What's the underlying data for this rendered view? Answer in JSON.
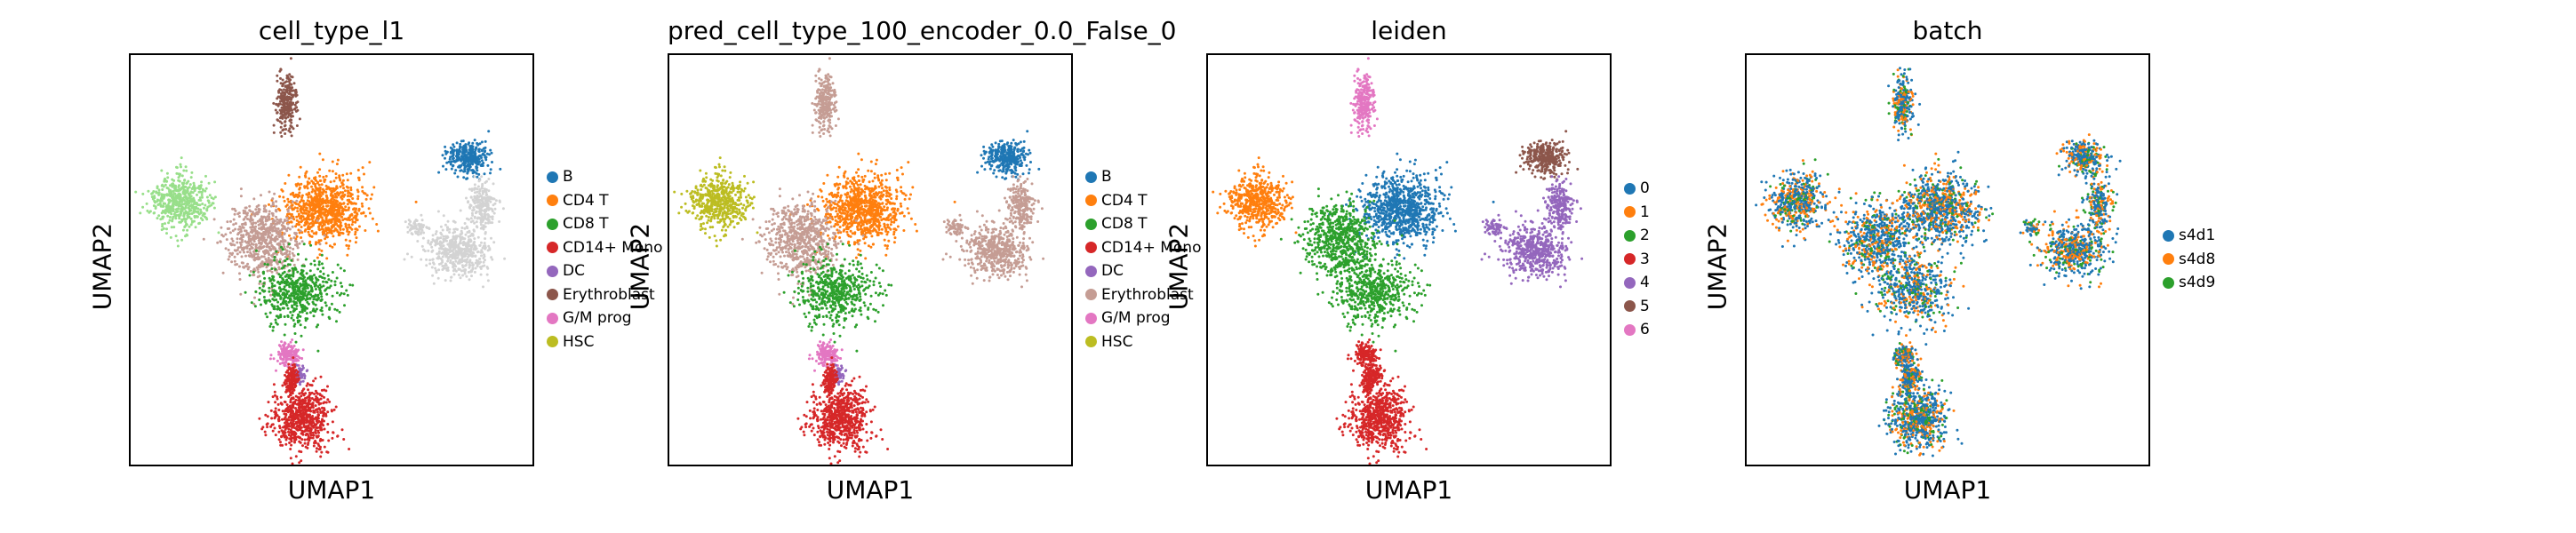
{
  "chart_data": [
    {
      "type": "scatter",
      "title": "cell_type_l1",
      "xlabel": "UMAP1",
      "ylabel": "UMAP2",
      "grid": false,
      "legend_position": "right",
      "categories": [
        "B",
        "CD4 T",
        "CD8 T",
        "CD14+ Mono",
        "DC",
        "Erythroblast",
        "G/M prog",
        "HSC"
      ],
      "colors": [
        "#1f77b4",
        "#ff7f0e",
        "#2ca02c",
        "#d62728",
        "#9467bd",
        "#8c564b",
        "#e377c2",
        "#bcbd22"
      ],
      "unlabeled_color": "#d3d3d3"
    },
    {
      "type": "scatter",
      "title": "pred_cell_type_100_encoder_0.0_False_0",
      "xlabel": "UMAP1",
      "ylabel": "UMAP2",
      "grid": false,
      "legend_position": "right",
      "categories": [
        "B",
        "CD4 T",
        "CD8 T",
        "CD14+ Mono",
        "DC",
        "Erythroblast",
        "G/M prog",
        "HSC"
      ],
      "colors": [
        "#1f77b4",
        "#ff7f0e",
        "#2ca02c",
        "#d62728",
        "#9467bd",
        "#c59d94",
        "#e377c2",
        "#bcbd22"
      ]
    },
    {
      "type": "scatter",
      "title": "leiden",
      "xlabel": "UMAP1",
      "ylabel": "UMAP2",
      "grid": false,
      "legend_position": "right",
      "categories": [
        "0",
        "1",
        "2",
        "3",
        "4",
        "5",
        "6"
      ],
      "colors": [
        "#1f77b4",
        "#ff7f0e",
        "#2ca02c",
        "#d62728",
        "#9467bd",
        "#8c564b",
        "#e377c2"
      ]
    },
    {
      "type": "scatter",
      "title": "batch",
      "xlabel": "UMAP1",
      "ylabel": "UMAP2",
      "grid": false,
      "legend_position": "right",
      "categories": [
        "s4d1",
        "s4d8",
        "s4d9"
      ],
      "colors": [
        "#1f77b4",
        "#ff7f0e",
        "#2ca02c"
      ]
    }
  ]
}
